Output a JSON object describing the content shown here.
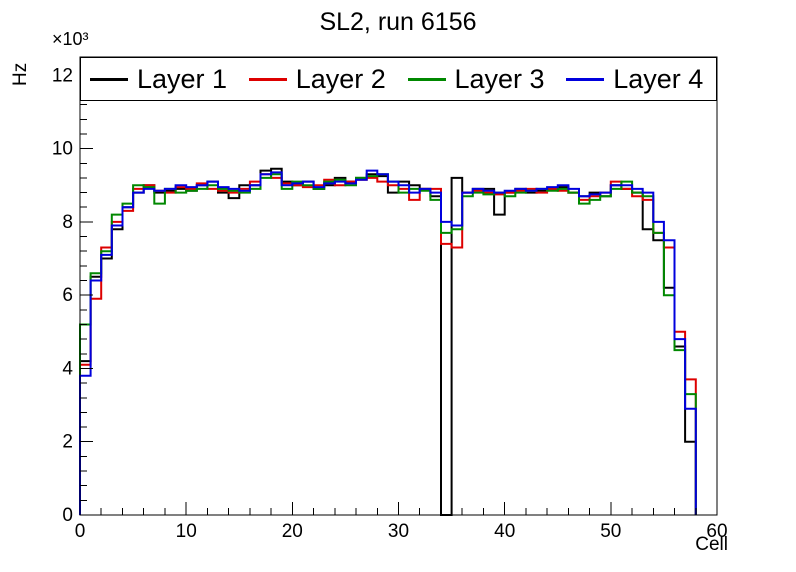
{
  "chart_data": {
    "type": "line",
    "style": "step-histogram",
    "title": "SL2, run 6156",
    "legend_position": "top",
    "grid": false,
    "bin_width": 1,
    "x_axis": {
      "label": "Cell",
      "min": 0,
      "max": 60,
      "major_ticks": [
        0,
        10,
        20,
        30,
        40,
        50,
        60
      ],
      "minor_step": 2
    },
    "y_axis": {
      "label": "Hz",
      "exponent": "×10³",
      "min": 0,
      "max": 12500,
      "major_ticks": [
        0,
        2000,
        4000,
        6000,
        8000,
        10000,
        12000
      ],
      "major_tick_labels": [
        "0",
        "2",
        "4",
        "6",
        "8",
        "10",
        "12"
      ],
      "minor_step": 400
    },
    "series": [
      {
        "name": "Layer 1",
        "color": "#000000",
        "values": [
          4200,
          6500,
          7000,
          7800,
          8400,
          8800,
          9000,
          8800,
          8850,
          8900,
          8850,
          9000,
          9100,
          8800,
          8650,
          9000,
          9000,
          9400,
          9450,
          9100,
          9000,
          9100,
          8900,
          9000,
          9200,
          9100,
          9200,
          9300,
          9250,
          8800,
          9100,
          9000,
          8900,
          8700,
          0,
          9200,
          8800,
          8900,
          8900,
          8200,
          8800,
          8900,
          8800,
          8850,
          8900,
          8950,
          8800,
          8700,
          8800,
          8700,
          9000,
          8900,
          8800,
          7800,
          7500,
          6200,
          4600,
          2000
        ]
      },
      {
        "name": "Layer 2",
        "color": "#dd0000",
        "values": [
          4100,
          5900,
          7300,
          8000,
          8300,
          8900,
          9000,
          8850,
          8800,
          8950,
          8900,
          9050,
          8900,
          8850,
          8800,
          8900,
          9100,
          9300,
          9200,
          9050,
          9000,
          8950,
          9000,
          9150,
          9000,
          9100,
          9150,
          9200,
          9100,
          9000,
          8900,
          8600,
          8900,
          8900,
          7400,
          7300,
          8800,
          8850,
          8800,
          8750,
          8800,
          8850,
          8900,
          8800,
          8900,
          8850,
          8800,
          8600,
          8700,
          8800,
          9100,
          8900,
          8700,
          8600,
          7700,
          7300,
          5000,
          3700
        ]
      },
      {
        "name": "Layer 3",
        "color": "#008800",
        "values": [
          5200,
          6600,
          7200,
          8200,
          8500,
          9000,
          8950,
          8500,
          8900,
          8800,
          8850,
          8900,
          9000,
          8900,
          8850,
          8800,
          8900,
          9200,
          9300,
          8900,
          9100,
          9000,
          8900,
          9100,
          9150,
          9000,
          9200,
          9250,
          9300,
          9100,
          8800,
          8900,
          8850,
          8600,
          7700,
          7800,
          8700,
          8800,
          8750,
          8800,
          8700,
          8800,
          8850,
          8900,
          8850,
          8900,
          8800,
          8500,
          8600,
          8700,
          8900,
          9100,
          8800,
          8700,
          7700,
          6000,
          4500,
          3300
        ]
      },
      {
        "name": "Layer 4",
        "color": "#0000dd",
        "values": [
          3800,
          6400,
          7100,
          7900,
          8400,
          8800,
          8900,
          8850,
          8900,
          9000,
          8950,
          9000,
          9100,
          8950,
          8900,
          8850,
          9000,
          9300,
          9350,
          9000,
          9050,
          9100,
          8950,
          9050,
          9100,
          9050,
          9150,
          9400,
          9300,
          9100,
          9000,
          8800,
          8900,
          8800,
          8000,
          7900,
          8800,
          8900,
          8850,
          8800,
          8850,
          8900,
          8850,
          8900,
          8950,
          9000,
          8900,
          8700,
          8750,
          8800,
          9000,
          9000,
          8900,
          8800,
          8000,
          7500,
          4800,
          2900
        ]
      }
    ]
  }
}
